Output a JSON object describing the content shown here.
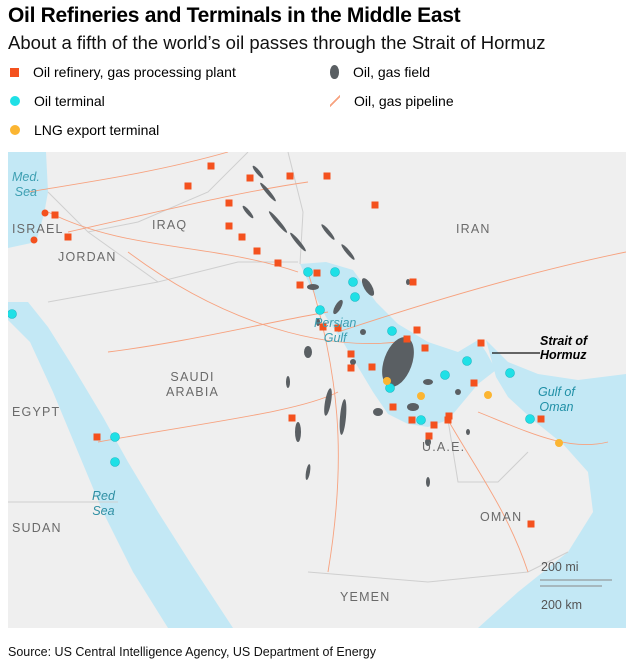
{
  "title": "Oil Refineries and Terminals in the Middle East",
  "subtitle": "About a fifth of the world’s oil passes through the Strait of Hormuz",
  "legend": [
    {
      "label": "Oil refinery, gas processing plant",
      "icon": "orange-square",
      "color": "#f4511e"
    },
    {
      "label": "Oil terminal",
      "icon": "cyan-circle",
      "color": "#1fe0e6"
    },
    {
      "label": "LNG export terminal",
      "icon": "yellow-circle",
      "color": "#fbb532"
    },
    {
      "label": "Oil, gas field",
      "icon": "gray-blob",
      "color": "#5a5f63"
    },
    {
      "label": "Oil, gas pipeline",
      "icon": "orange-line",
      "color": "#f7a27f"
    }
  ],
  "map": {
    "colors": {
      "land": "#efefef",
      "water": "#c3e8f5",
      "border": "#d0d0d0"
    },
    "countries": {
      "israel": "ISRAEL",
      "jordan": "JORDAN",
      "iraq": "IRAQ",
      "iran": "IRAN",
      "saudi": "SAUDI\nARABIA",
      "egypt": "EGYPT",
      "sudan": "SUDAN",
      "uae": "U.A.E.",
      "oman": "OMAN",
      "yemen": "YEMEN"
    },
    "seas": {
      "med": "Med.\nSea",
      "persian": "Persian\nGulf",
      "oman": "Gulf of\nOman",
      "red": "Red\nSea"
    },
    "callout": "Strait of\nHormuz",
    "scale": {
      "miles": "200 mi",
      "km": "200 km"
    }
  },
  "source": "Source: US Central Intelligence Agency, US Department of Energy"
}
